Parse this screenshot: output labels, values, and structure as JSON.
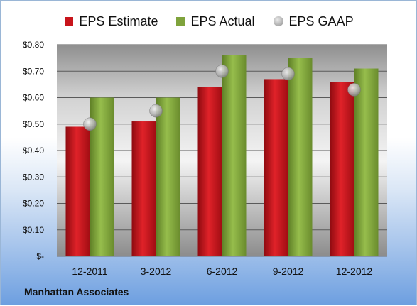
{
  "chart_data": {
    "type": "bar",
    "categories": [
      "12-2011",
      "3-2012",
      "6-2012",
      "9-2012",
      "12-2012"
    ],
    "series": [
      {
        "name": "EPS Estimate",
        "type": "bar",
        "values": [
          0.49,
          0.51,
          0.64,
          0.67,
          0.66
        ]
      },
      {
        "name": "EPS Actual",
        "type": "bar",
        "values": [
          0.6,
          0.6,
          0.76,
          0.75,
          0.71
        ]
      },
      {
        "name": "EPS GAAP",
        "type": "scatter",
        "values": [
          0.5,
          0.55,
          0.7,
          0.69,
          0.63
        ]
      }
    ],
    "ylim": [
      0,
      0.8
    ],
    "yticks": [
      "$-",
      "$0.10",
      "$0.20",
      "$0.30",
      "$0.40",
      "$0.50",
      "$0.60",
      "$0.70",
      "$0.80"
    ],
    "grid": true,
    "legend_position": "top",
    "colors": {
      "estimate": "#c8141b",
      "actual": "#7fa33c",
      "gaap": "#a9a9a9"
    }
  },
  "footer": {
    "company": "Manhattan Associates"
  }
}
